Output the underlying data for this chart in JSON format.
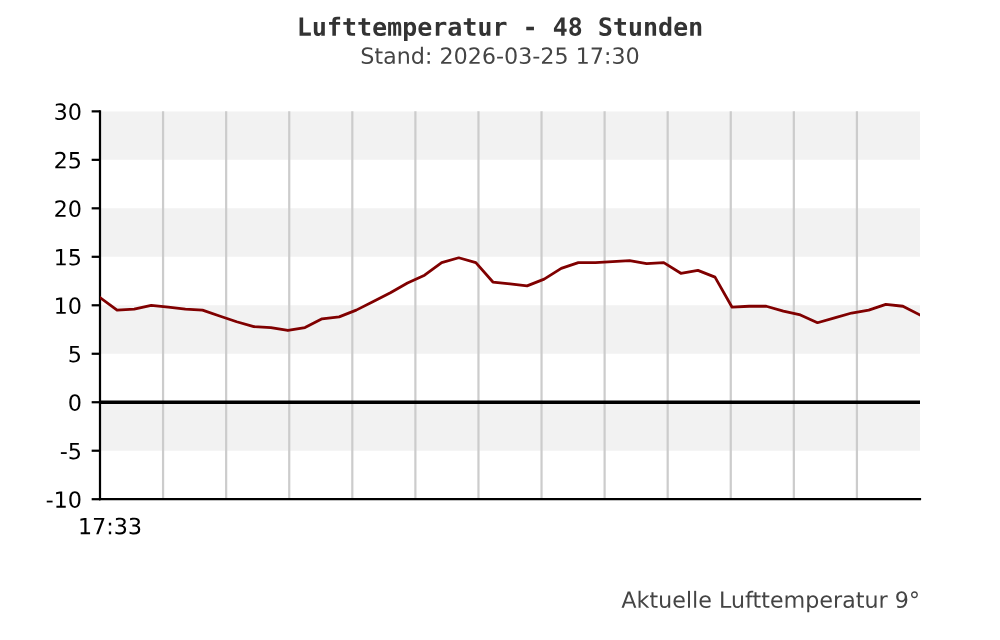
{
  "chart_data": {
    "type": "line",
    "title": "Lufttemperatur - 48 Stunden",
    "subtitle": "Stand: 2026-03-25 17:30",
    "categories": [
      null,
      null,
      null,
      null,
      null,
      null,
      null,
      null,
      null,
      null,
      null,
      null,
      null,
      null,
      null,
      null,
      null,
      null,
      null,
      null,
      null,
      null,
      null,
      null,
      null,
      null,
      null,
      null,
      null,
      null,
      null,
      null,
      null,
      null,
      null,
      null,
      null,
      null,
      null,
      null,
      null,
      null,
      null,
      null,
      null,
      null,
      null,
      null,
      null
    ],
    "series": [
      {
        "color": "#800000",
        "values": [
          10.8,
          9.5,
          9.6,
          10.0,
          9.8,
          9.6,
          9.5,
          8.9,
          8.3,
          7.8,
          7.7,
          7.4,
          7.7,
          8.6,
          8.8,
          9.5,
          10.4,
          11.3,
          12.3,
          13.1,
          14.4,
          14.9,
          14.4,
          12.4,
          12.2,
          12.0,
          12.7,
          13.8,
          14.4,
          14.4,
          14.5,
          14.6,
          14.3,
          14.4,
          13.3,
          13.6,
          12.9,
          9.8,
          9.9,
          9.9,
          9.4,
          9.0,
          8.2,
          8.7,
          9.2,
          9.5,
          10.1,
          9.9,
          9.0
        ]
      }
    ],
    "ylim": [
      -10,
      30
    ],
    "yticks": [
      -10,
      -5,
      0,
      5,
      10,
      15,
      20,
      25,
      30
    ],
    "grid": "x",
    "legend": false,
    "marker": "none",
    "line_style": "solid",
    "ref_lines": [
      {
        "axis": "y",
        "value": 0,
        "color": "#000000",
        "line_style": "solid"
      }
    ],
    "bands": [
      {
        "axis": "y",
        "from": 25,
        "to": 30,
        "color": "#f2f2f2"
      },
      {
        "axis": "y",
        "from": 15,
        "to": 20,
        "color": "#f2f2f2"
      },
      {
        "axis": "y",
        "from": 5,
        "to": 10,
        "color": "#f2f2f2"
      },
      {
        "axis": "y",
        "from": -5,
        "to": 0,
        "color": "#f2f2f2"
      }
    ],
    "annotations": [
      "17:33",
      "Aktuelle Lufttemperatur 9°"
    ]
  }
}
